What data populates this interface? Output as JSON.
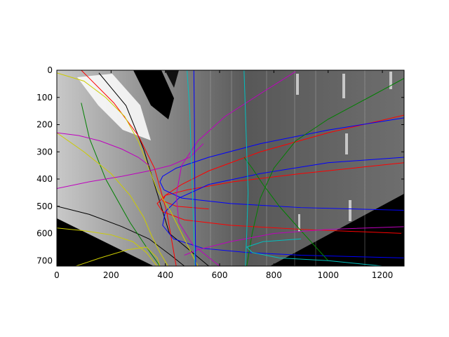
{
  "chart_data": {
    "type": "line",
    "title": "",
    "xlabel": "",
    "ylabel": "",
    "xlim": [
      0,
      1280
    ],
    "ylim": [
      720,
      0
    ],
    "y_inverted": true,
    "grid": false,
    "legend": "none",
    "background": "grayscale image (road / lane camera view)",
    "x_ticks": [
      0,
      200,
      400,
      600,
      800,
      1000,
      1200
    ],
    "y_ticks": [
      0,
      100,
      200,
      300,
      400,
      500,
      600,
      700
    ],
    "x_tick_labels": [
      "0",
      "200",
      "400",
      "600",
      "800",
      "1000",
      "1200"
    ],
    "y_tick_labels": [
      "0",
      "100",
      "200",
      "300",
      "400",
      "500",
      "600",
      "700"
    ],
    "series": [
      {
        "color": "#000000",
        "x": [
          155,
          255,
          320,
          360,
          415,
          560
        ],
        "y": [
          10,
          130,
          290,
          420,
          600,
          720
        ]
      },
      {
        "color": "#000000",
        "x": [
          0,
          120,
          240,
          340,
          420,
          470
        ],
        "y": [
          500,
          530,
          575,
          620,
          680,
          720
        ]
      },
      {
        "color": "#ff0000",
        "x": [
          90,
          210,
          300,
          360,
          405,
          440
        ],
        "y": [
          0,
          120,
          240,
          360,
          520,
          720
        ]
      },
      {
        "color": "#ff0000",
        "x": [
          1280,
          1000,
          750,
          560,
          460,
          400,
          370,
          390,
          470,
          640,
          900,
          1280
        ],
        "y": [
          165,
          230,
          300,
          370,
          420,
          460,
          490,
          520,
          550,
          570,
          585,
          600
        ]
      },
      {
        "color": "#ff0000",
        "x": [
          1280,
          900,
          650,
          480,
          400,
          390,
          440,
          560
        ],
        "y": [
          340,
          380,
          410,
          440,
          460,
          480,
          500,
          510
        ]
      },
      {
        "color": "#0000ff",
        "x": [
          1280,
          1000,
          750,
          560,
          440,
          390,
          380,
          395,
          460,
          640,
          900,
          1280
        ],
        "y": [
          175,
          220,
          270,
          320,
          360,
          390,
          410,
          440,
          470,
          490,
          505,
          515
        ]
      },
      {
        "color": "#0000ff",
        "x": [
          1280,
          1000,
          750,
          560,
          450,
          400,
          390,
          430,
          540,
          700,
          900,
          1280
        ],
        "y": [
          320,
          340,
          380,
          420,
          470,
          520,
          570,
          620,
          655,
          670,
          680,
          690
        ]
      },
      {
        "color": "#008000",
        "x": [
          90,
          120,
          180,
          270,
          330,
          380
        ],
        "y": [
          120,
          250,
          400,
          560,
          650,
          720
        ]
      },
      {
        "color": "#008000",
        "x": [
          1280,
          1150,
          1000,
          880,
          800,
          750,
          720,
          700
        ],
        "y": [
          30,
          100,
          180,
          260,
          360,
          470,
          600,
          720
        ]
      },
      {
        "color": "#008000",
        "x": [
          690,
          720,
          760,
          820,
          900,
          1000
        ],
        "y": [
          320,
          360,
          420,
          500,
          590,
          700
        ]
      },
      {
        "color": "#cccc00",
        "x": [
          0,
          100,
          180,
          250,
          300,
          335,
          370,
          420,
          480,
          520
        ],
        "y": [
          10,
          40,
          100,
          170,
          260,
          350,
          440,
          520,
          640,
          720
        ]
      },
      {
        "color": "#cccc00",
        "x": [
          0,
          100,
          200,
          270,
          320,
          350,
          380,
          410
        ],
        "y": [
          230,
          300,
          380,
          460,
          540,
          610,
          670,
          720
        ]
      },
      {
        "color": "#cccc00",
        "x": [
          0,
          100,
          200,
          280,
          330,
          370
        ],
        "y": [
          580,
          590,
          605,
          630,
          670,
          720
        ]
      },
      {
        "color": "#cccc00",
        "x": [
          70,
          160,
          260,
          330,
          370,
          380
        ],
        "y": [
          720,
          690,
          660,
          650,
          690,
          720
        ]
      },
      {
        "color": "#bf00bf",
        "x": [
          0,
          120,
          240,
          340,
          420,
          490,
          540
        ],
        "y": [
          435,
          410,
          390,
          370,
          350,
          320,
          270
        ]
      },
      {
        "color": "#bf00bf",
        "x": [
          0,
          80,
          160,
          240,
          300,
          340
        ],
        "y": [
          230,
          240,
          260,
          290,
          320,
          350
        ]
      },
      {
        "color": "#bf00bf",
        "x": [
          880,
          760,
          620,
          520,
          460,
          440,
          450,
          500,
          600
        ],
        "y": [
          5,
          80,
          170,
          260,
          350,
          460,
          560,
          640,
          720
        ]
      },
      {
        "color": "#bf00bf",
        "x": [
          1280,
          1000,
          800,
          640,
          520,
          470
        ],
        "y": [
          575,
          585,
          600,
          630,
          660,
          680
        ]
      },
      {
        "color": "#00bfbf",
        "x": [
          480,
          490,
          495,
          500,
          505,
          510
        ],
        "y": [
          0,
          150,
          300,
          450,
          600,
          720
        ]
      },
      {
        "color": "#00bfbf",
        "x": [
          690,
          695,
          700,
          705,
          700,
          695
        ],
        "y": [
          0,
          150,
          300,
          450,
          600,
          720
        ]
      },
      {
        "color": "#00bfbf",
        "x": [
          1200,
          1000,
          820,
          720,
          700,
          760,
          900
        ],
        "y": [
          720,
          700,
          690,
          670,
          650,
          630,
          620
        ]
      },
      {
        "color": "#0000ff",
        "x": [
          505,
          507,
          508,
          510,
          512
        ],
        "y": [
          0,
          180,
          360,
          540,
          720
        ]
      }
    ]
  }
}
